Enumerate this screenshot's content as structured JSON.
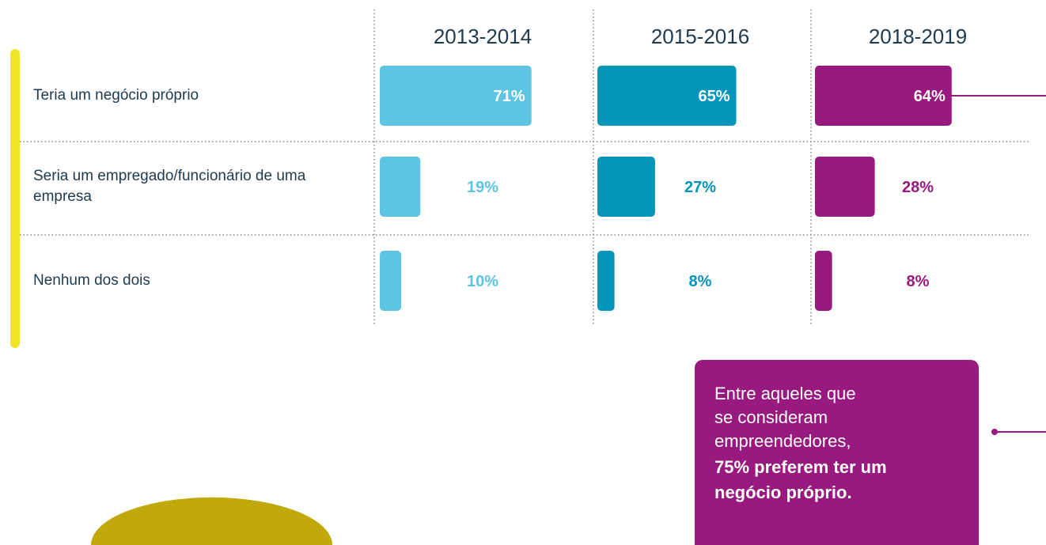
{
  "chart_data": {
    "type": "bar",
    "categories": [
      "Teria um negócio próprio",
      "Seria um empregado/funcionário de uma empresa",
      "Nenhum dos dois"
    ],
    "series": [
      {
        "name": "2013-2014",
        "color": "#5ec4e4",
        "values": [
          71,
          19,
          10
        ],
        "value_labels": [
          "71%",
          "19%",
          "10%"
        ]
      },
      {
        "name": "2015-2016",
        "color": "#0396ba",
        "values": [
          65,
          27,
          8
        ],
        "value_labels": [
          "65%",
          "27%",
          "8%"
        ]
      },
      {
        "name": "2018-2019",
        "color": "#981a7e",
        "values": [
          64,
          28,
          8
        ],
        "value_labels": [
          "64%",
          "28%",
          "8%"
        ]
      }
    ],
    "annotation": {
      "lines": [
        "Entre aqueles que",
        "se consideram",
        "empreendedores,"
      ],
      "emphasis_lines": [
        "75% preferem ter um",
        "negócio próprio."
      ]
    }
  }
}
